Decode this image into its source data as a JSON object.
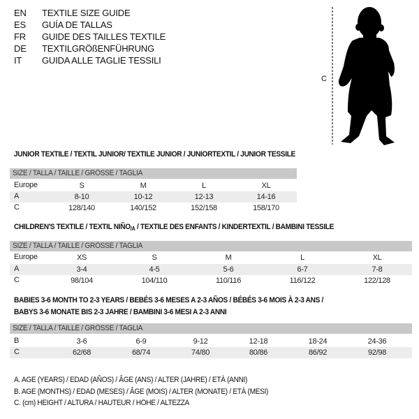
{
  "languages": [
    {
      "code": "EN",
      "text": "TEXTILE SIZE GUIDE"
    },
    {
      "code": "ES",
      "text": "GUÍA DE TALLAS"
    },
    {
      "code": "FR",
      "text": "GUIDE DES TAILLES TEXTILE"
    },
    {
      "code": "DE",
      "text": "TEXTILGRÖßENFÜHRUNG"
    },
    {
      "code": "IT",
      "text": "GUIDA ALLE TAGLIE TESSILI"
    }
  ],
  "figure": {
    "measure_label": "C",
    "icon": "child-silhouette"
  },
  "size_header": "SIZE / TALLA / TAILLE / GRÖSSE / TAGLIA",
  "junior": {
    "title": "JUNIOR TEXTILE / TEXTIL JUNIOR/ TEXTILE JUNIOR / JUNIORTEXTIL / JUNIOR TESSILE",
    "rows": [
      {
        "label": "Europe",
        "values": [
          "S",
          "M",
          "L",
          "XL"
        ]
      },
      {
        "label": "A",
        "values": [
          "8-10",
          "10-12",
          "12-13",
          "14-16"
        ]
      },
      {
        "label": "C",
        "values": [
          "128/140",
          "140/152",
          "152/158",
          "158/170"
        ]
      }
    ]
  },
  "children": {
    "title_a": "CHILDREN'S TEXTILE / TEXTIL NIÑO",
    "title_sub": "/A",
    "title_b": " / TEXTILE DES ENFANTS / KINDERTEXTIL / BAMBINI TESSILE",
    "rows": [
      {
        "label": "Europe",
        "values": [
          "XS",
          "S",
          "M",
          "L",
          "XL"
        ]
      },
      {
        "label": "A",
        "values": [
          "3-4",
          "4-5",
          "5-6",
          "6-7",
          "7-8"
        ]
      },
      {
        "label": "C",
        "values": [
          "98/104",
          "104/110",
          "110/116",
          "116/122",
          "122/128"
        ]
      }
    ]
  },
  "babies": {
    "title_1": "BABIES 3-6 MONTH TO 2-3 YEARS / BEBÉS 3-6 MESES A 2-3 AÑOS / BÉBÉS 3-6 MOIS À 2-3 ANS /",
    "title_2": "BABYS 3-6 MONATE BIS 2-3 JAHRE / BAMBINI 3-6 MESI A 2-3 ANNI",
    "rows": [
      {
        "label": "B",
        "values": [
          "3-6",
          "6-9",
          "9-12",
          "12-18",
          "18-24",
          "24-36"
        ]
      },
      {
        "label": "C",
        "values": [
          "62/68",
          "68/74",
          "74/80",
          "80/86",
          "86/92",
          "92/98"
        ]
      }
    ]
  },
  "legend": [
    "A. AGE (YEARS) / EDAD (AÑOS) / ÂGE (ANS) / ALTER (JAHRE) / ETÀ (ANNI)",
    "B. AGE (MONTHS) / EDAD (MESES) / ÂGE (MOIS) / ALTER (MONATE) / ETÀ (MESI)",
    "C. (cm) HEIGHT / ALTURA / HAUTEUR / HÖHE / ALTEZZA"
  ]
}
